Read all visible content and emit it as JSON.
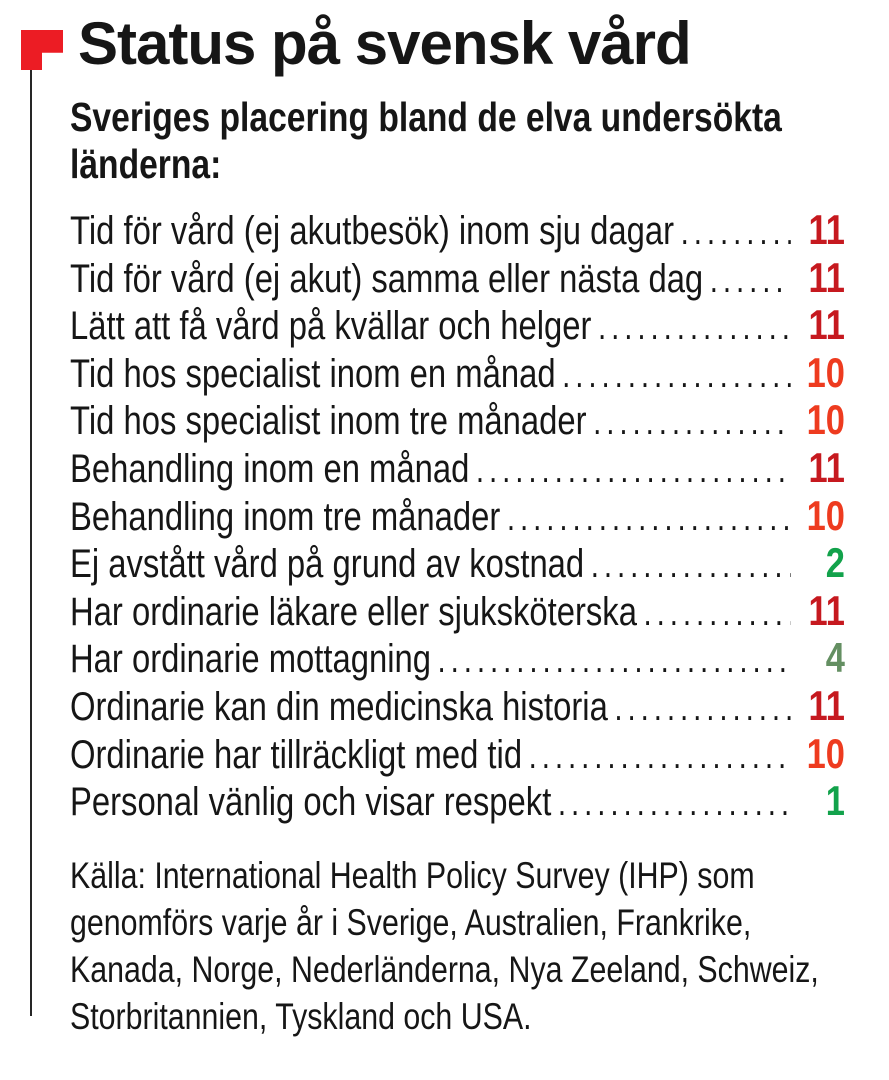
{
  "header": {
    "title": "Status på svensk vård",
    "subtitle_lines": [
      "Sveriges placering bland de elva undersökta",
      "länderna:"
    ]
  },
  "chart_data": {
    "type": "table",
    "title": "Status på svensk vård",
    "subtitle": "Sveriges placering bland de elva undersökta länderna:",
    "rows": [
      {
        "label": "Tid för vård (ej akutbesök) inom sju dagar",
        "value": 11,
        "color": "dark_red"
      },
      {
        "label": "Tid för vård (ej akut) samma eller nästa dag",
        "value": 11,
        "color": "dark_red"
      },
      {
        "label": "Lätt att få vård på kvällar och helger",
        "value": 11,
        "color": "dark_red"
      },
      {
        "label": "Tid hos specialist inom en månad",
        "value": 10,
        "color": "orange_red"
      },
      {
        "label": "Tid hos specialist inom tre månader",
        "value": 10,
        "color": "orange_red"
      },
      {
        "label": "Behandling inom en månad",
        "value": 11,
        "color": "dark_red"
      },
      {
        "label": "Behandling inom tre månader",
        "value": 10,
        "color": "orange_red"
      },
      {
        "label": "Ej avstått vård på grund av kostnad",
        "value": 2,
        "color": "green"
      },
      {
        "label": "Har ordinarie läkare eller sjuksköterska",
        "value": 11,
        "color": "dark_red"
      },
      {
        "label": "Har ordinarie mottagning",
        "value": 4,
        "color": "sage_green"
      },
      {
        "label": "Ordinarie kan din medicinska historia",
        "value": 11,
        "color": "dark_red"
      },
      {
        "label": "Ordinarie har tillräckligt med tid",
        "value": 10,
        "color": "orange_red"
      },
      {
        "label": "Personal vänlig och visar respekt",
        "value": 1,
        "color": "green"
      }
    ],
    "source": "Källa: International Health Policy Survey (IHP) som genomförs varje år i Sverige, Australien, Frankrike, Kanada, Norge, Nederländerna, Nya Zeeland, Schweiz, Storbritannien, Tyskland och USA."
  },
  "source_note": {
    "lines": [
      "Källa: International Health Policy Survey (IHP) som",
      "genomförs varje år i Sverige, Australien, Frankrike,",
      "Kanada, Norge, Nederländerna, Nya Zeeland, Schweiz,",
      "Storbritannien, Tyskland och USA."
    ]
  },
  "colors": {
    "dark_red": "#c6191f",
    "orange_red": "#ee3b1f",
    "green": "#12a24b",
    "sage_green": "#648f62",
    "flag_red": "#ec1c24",
    "pole": "#262626",
    "text": "#161616"
  }
}
